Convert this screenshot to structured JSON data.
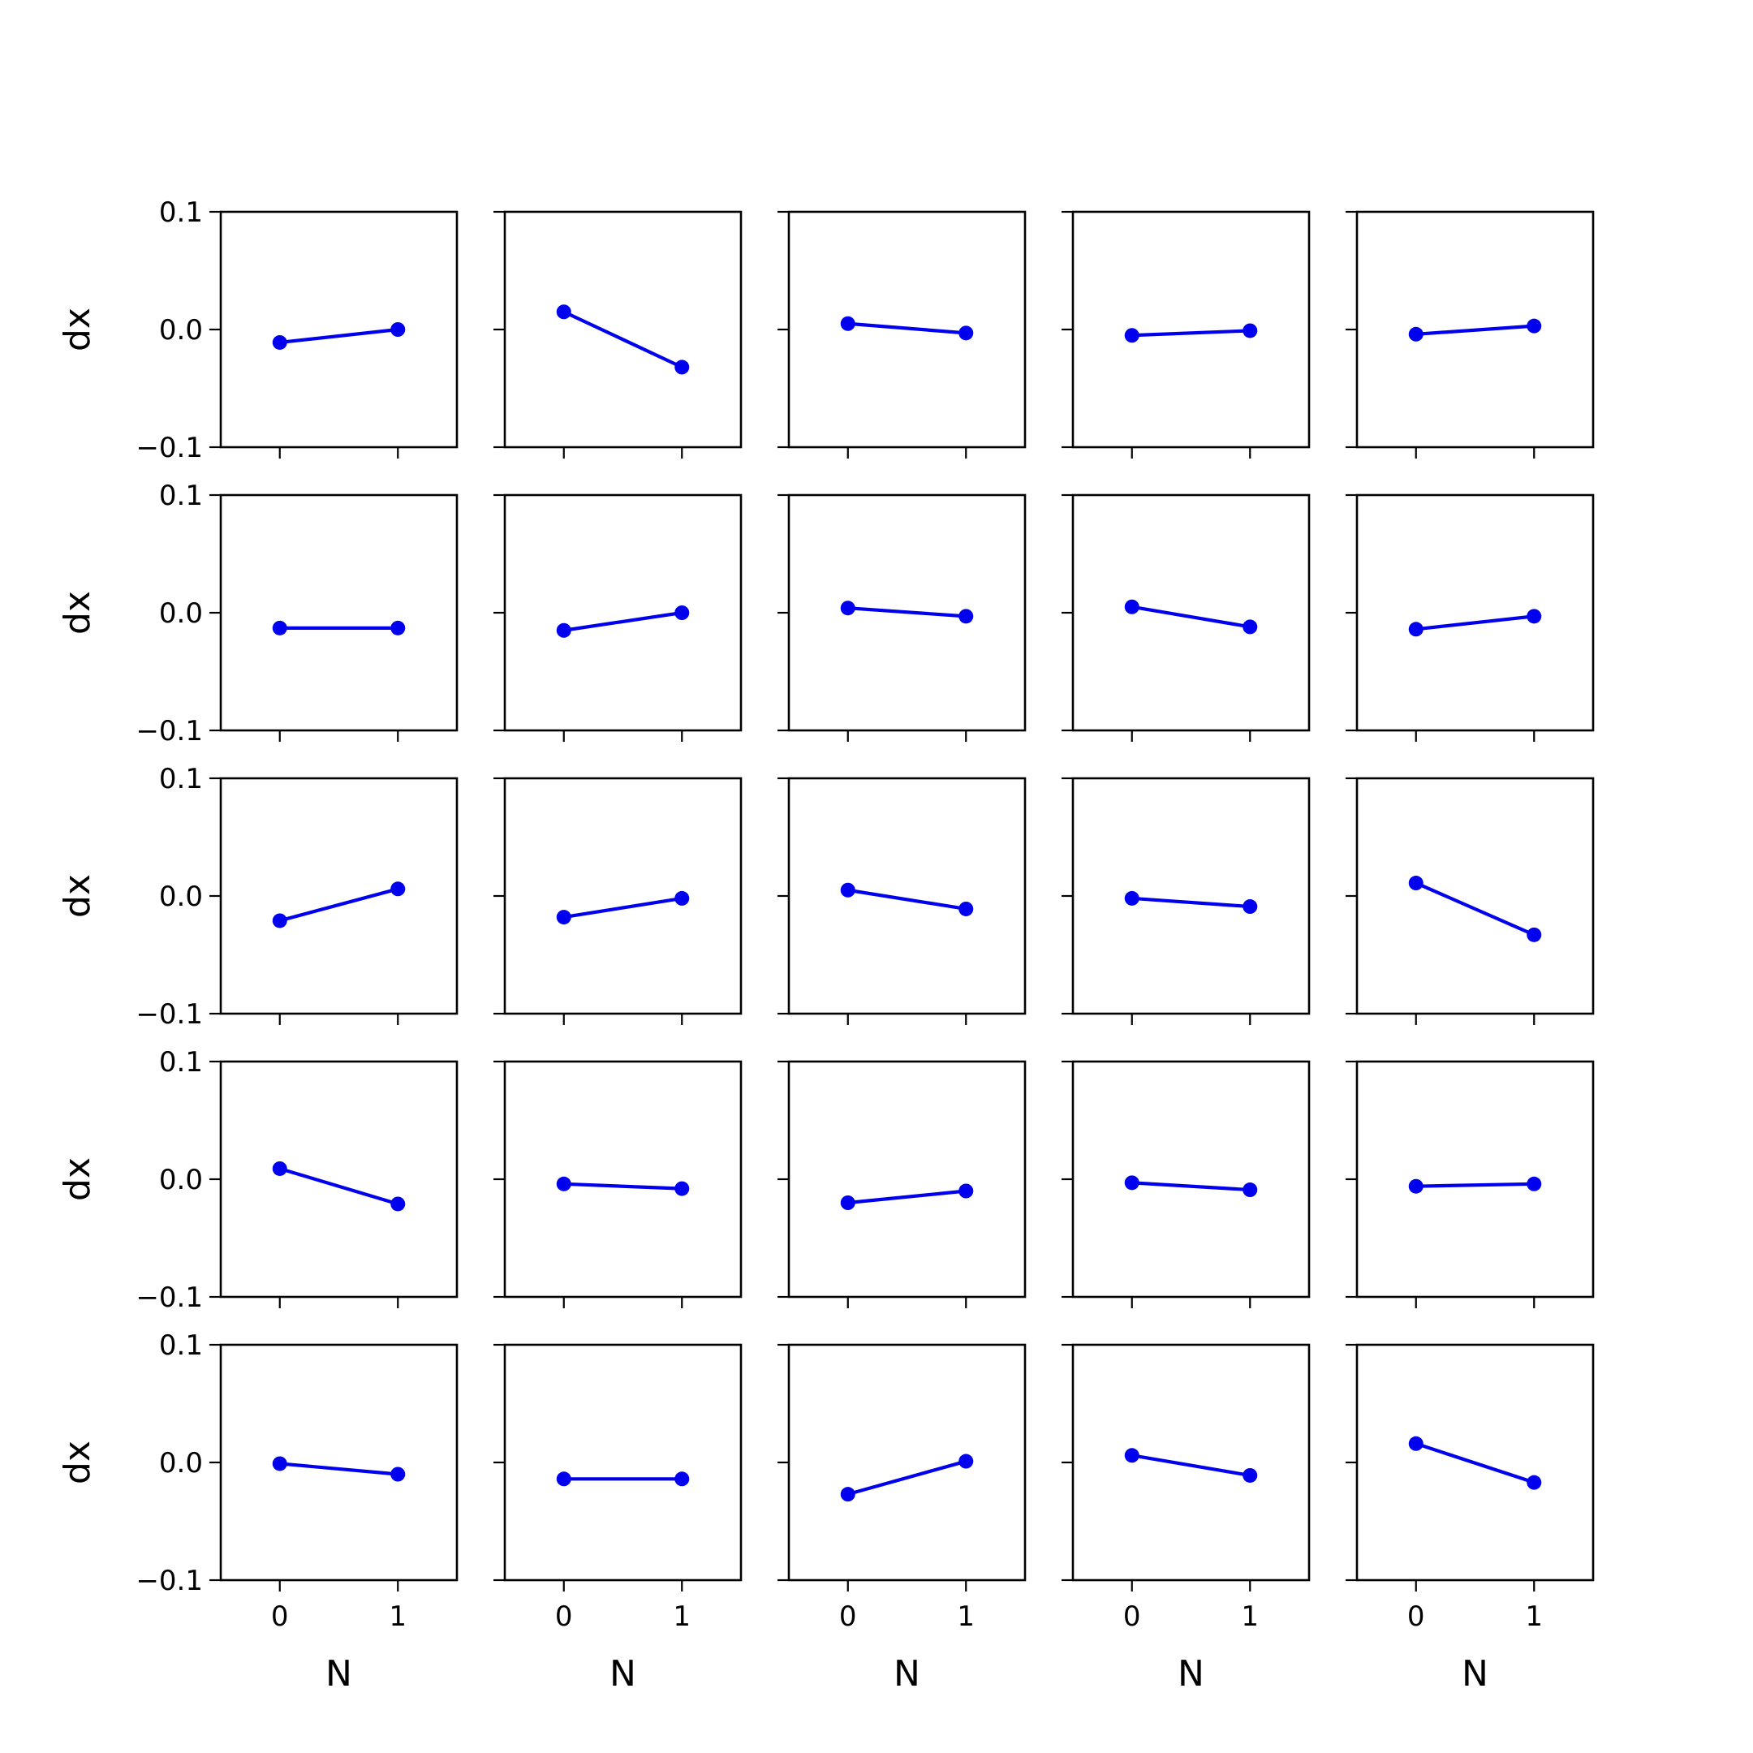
{
  "colors": {
    "series": "#0000ee",
    "axes": "#000000",
    "background": "#ffffff"
  },
  "chart_data": {
    "type": "line",
    "layout": "5x5 grid of small multiples",
    "shared_axes": true,
    "xlabel": "N",
    "ylabel": "dx",
    "xlim": [
      -0.5,
      1.5
    ],
    "ylim": [
      -0.1,
      0.1
    ],
    "xticks": [
      0,
      1
    ],
    "xtick_labels": [
      "0",
      "1"
    ],
    "yticks": [
      0.1,
      0.0,
      -0.1
    ],
    "ytick_labels": [
      "0.1",
      "0.0",
      "−0.1"
    ],
    "grid": false,
    "marker": "circle",
    "x": [
      0,
      1
    ],
    "panels": [
      [
        {
          "values": [
            -0.011,
            0.0
          ]
        },
        {
          "values": [
            0.015,
            -0.032
          ]
        },
        {
          "values": [
            0.005,
            -0.003
          ]
        },
        {
          "values": [
            -0.005,
            -0.001
          ]
        },
        {
          "values": [
            -0.004,
            0.003
          ]
        }
      ],
      [
        {
          "values": [
            -0.013,
            -0.013
          ]
        },
        {
          "values": [
            -0.015,
            0.0
          ]
        },
        {
          "values": [
            0.004,
            -0.003
          ]
        },
        {
          "values": [
            0.005,
            -0.012
          ]
        },
        {
          "values": [
            -0.014,
            -0.003
          ]
        }
      ],
      [
        {
          "values": [
            -0.021,
            0.006
          ]
        },
        {
          "values": [
            -0.018,
            -0.002
          ]
        },
        {
          "values": [
            0.005,
            -0.011
          ]
        },
        {
          "values": [
            -0.002,
            -0.009
          ]
        },
        {
          "values": [
            0.011,
            -0.033
          ]
        }
      ],
      [
        {
          "values": [
            0.009,
            -0.021
          ]
        },
        {
          "values": [
            -0.004,
            -0.008
          ]
        },
        {
          "values": [
            -0.02,
            -0.01
          ]
        },
        {
          "values": [
            -0.003,
            -0.009
          ]
        },
        {
          "values": [
            -0.006,
            -0.004
          ]
        }
      ],
      [
        {
          "values": [
            -0.001,
            -0.01
          ]
        },
        {
          "values": [
            -0.014,
            -0.014
          ]
        },
        {
          "values": [
            -0.027,
            0.001
          ]
        },
        {
          "values": [
            0.006,
            -0.011
          ]
        },
        {
          "values": [
            0.016,
            -0.017
          ]
        }
      ]
    ]
  }
}
